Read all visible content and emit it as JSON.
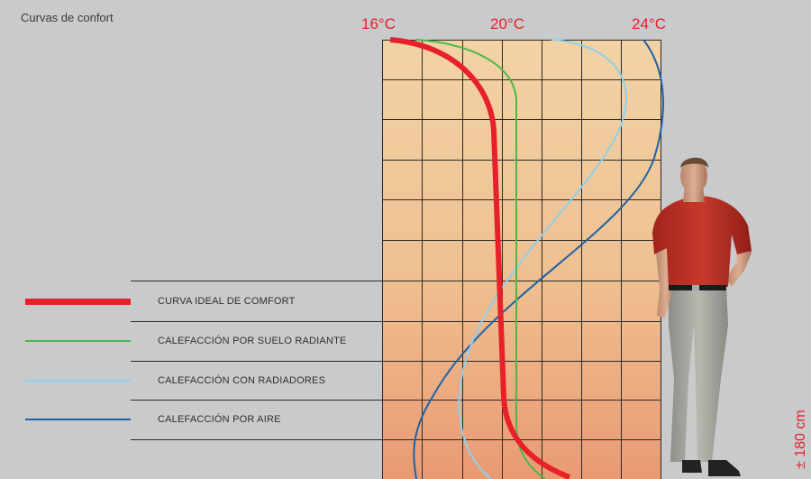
{
  "title": "Curvas de confort",
  "temperature_labels": [
    "16°C",
    "20°C",
    "24°C"
  ],
  "legend": [
    {
      "label": "CURVA IDEAL DE COMFORT",
      "color": "#e8202a"
    },
    {
      "label": "CALEFACCIÓN POR SUELO RADIANTE",
      "color": "#4bb848"
    },
    {
      "label": "CALEFACCIÓN CON RADIADORES",
      "color": "#8fd0ea"
    },
    {
      "label": "CALEFACCIÓN POR AIRE",
      "color": "#1d62a6"
    }
  ],
  "height_label": "± 180 cm",
  "colors": {
    "background": "#c9cacc",
    "chart_top": "#f2d3a6",
    "chart_bottom": "#e99a73",
    "accent": "#e8202a"
  }
}
